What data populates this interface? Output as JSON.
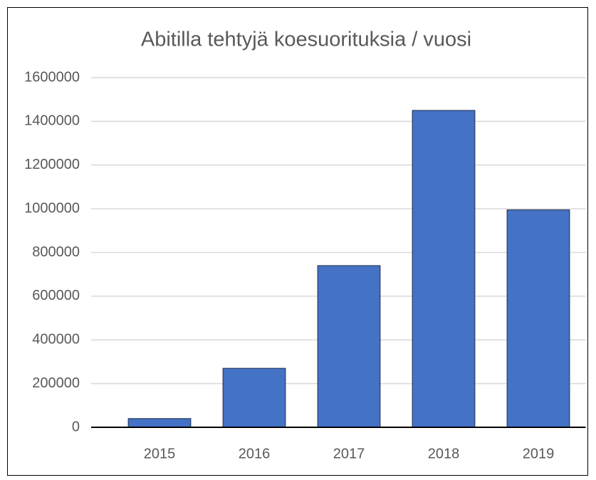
{
  "chart_data": {
    "type": "bar",
    "title": "Abitilla tehtyjä koesuorituksia / vuosi",
    "categories": [
      "2015",
      "2016",
      "2017",
      "2018",
      "2019"
    ],
    "values": [
      40000,
      270000,
      740000,
      1450000,
      995000
    ],
    "color": "#4472c4",
    "ylim": [
      0,
      1600000
    ],
    "yticks": [
      0,
      200000,
      400000,
      600000,
      800000,
      1000000,
      1200000,
      1400000,
      1600000
    ],
    "grid": true
  }
}
